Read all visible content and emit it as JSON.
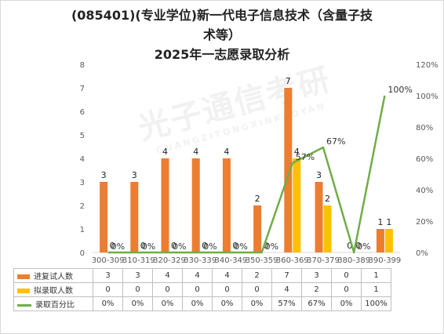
{
  "title": {
    "line1": "(085401)(专业学位)新一代电子信息技术（含量子技",
    "line2": "术等）",
    "line3": "2025年一志愿录取分析"
  },
  "watermark": {
    "main": "光子通信考研",
    "sub": "GUANGZITONGXINKAOYAN"
  },
  "chart_data": {
    "type": "bar",
    "categories": [
      "300-309",
      "310-319",
      "320-329",
      "330-339",
      "340-349",
      "350-359",
      "360-369",
      "370-379",
      "380-389",
      "390-399"
    ],
    "series": [
      {
        "name": "进复试人数",
        "type": "bar",
        "axis": "left",
        "color": "#ED7D31",
        "values": [
          3,
          3,
          4,
          4,
          4,
          2,
          7,
          3,
          0,
          1
        ]
      },
      {
        "name": "拟录取人数",
        "type": "bar",
        "axis": "left",
        "color": "#FFC000",
        "values": [
          0,
          0,
          0,
          0,
          0,
          0,
          4,
          2,
          0,
          1
        ]
      },
      {
        "name": "录取百分比",
        "type": "line",
        "axis": "right",
        "color": "#70AD47",
        "values": [
          0,
          0,
          0,
          0,
          0,
          0,
          57,
          67,
          0,
          100
        ],
        "labels": [
          "0%",
          "0%",
          "0%",
          "0%",
          "0%",
          "0%",
          "57%",
          "67%",
          "0%",
          "100%"
        ]
      }
    ],
    "y_left": {
      "min": 0,
      "max": 8,
      "step": 1
    },
    "y_right": {
      "min": 0,
      "max": 120,
      "step": 20,
      "format": "percent"
    },
    "grid": false,
    "legend": "data-table"
  }
}
